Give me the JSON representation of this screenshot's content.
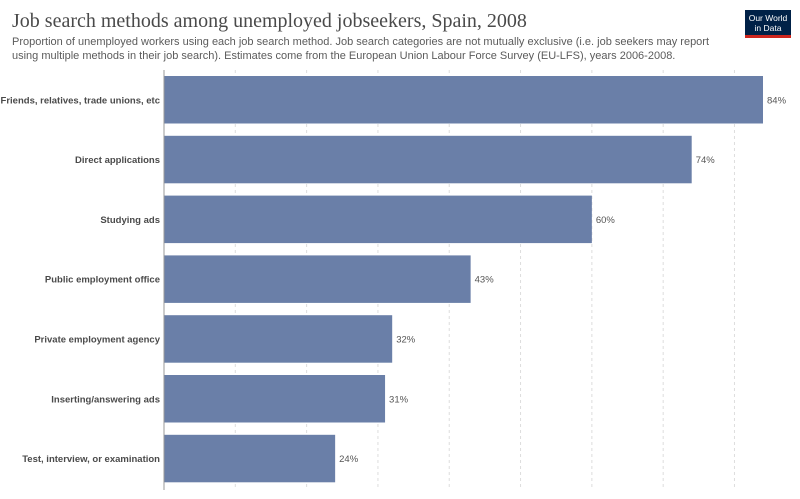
{
  "header": {
    "title": "Job search methods among unemployed jobseekers, Spain, 2008",
    "subtitle": "Proportion of unemployed workers using each job search method. Job search categories are not mutually exclusive (i.e. job seekers may report using multiple methods in their job search). Estimates come from the European Union Labour Force Survey (EU-LFS), years 2006-2008."
  },
  "logo": {
    "line1": "Our World",
    "line2": "in Data"
  },
  "chart_data": {
    "type": "bar",
    "orientation": "horizontal",
    "categories": [
      "Friends, relatives, trade unions, etc",
      "Direct applications",
      "Studying ads",
      "Public employment office",
      "Private employment agency",
      "Inserting/answering ads",
      "Test, interview, or examination"
    ],
    "values": [
      84,
      74,
      60,
      43,
      32,
      31,
      24
    ],
    "value_labels": [
      "84%",
      "74%",
      "60%",
      "43%",
      "32%",
      "31%",
      "24%"
    ],
    "xlim": [
      0,
      84
    ],
    "grid": true,
    "bar_color": "#6a7fa8",
    "grid_color": "#dddddd"
  }
}
